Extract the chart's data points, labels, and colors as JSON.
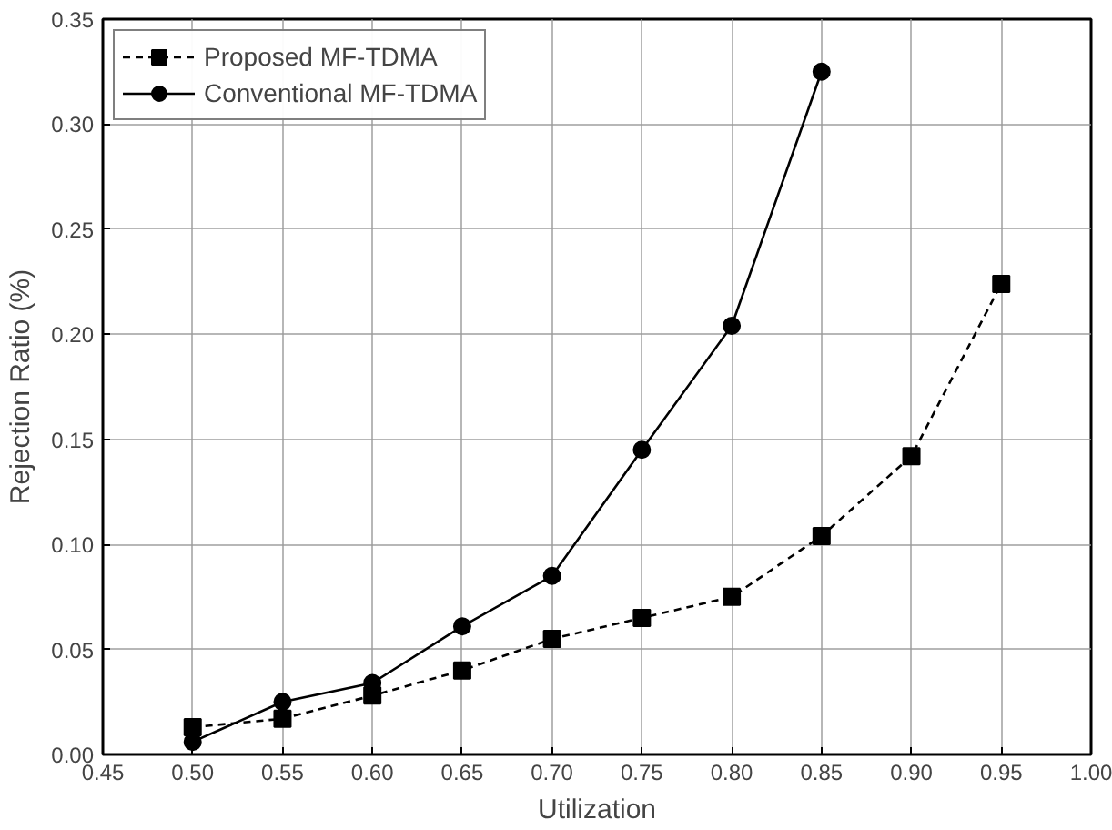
{
  "chart_data": {
    "type": "line",
    "xlabel": "Utilization",
    "ylabel": "Rejection Ratio (%)",
    "xlim": [
      0.45,
      1.0
    ],
    "ylim": [
      0,
      0.35
    ],
    "xticks": [
      {
        "value": 0.45,
        "label": "0.45"
      },
      {
        "value": 0.5,
        "label": "0.50"
      },
      {
        "value": 0.55,
        "label": "0.55"
      },
      {
        "value": 0.6,
        "label": "0.60"
      },
      {
        "value": 0.65,
        "label": "0.65"
      },
      {
        "value": 0.7,
        "label": "0.70"
      },
      {
        "value": 0.75,
        "label": "0.75"
      },
      {
        "value": 0.8,
        "label": "0.80"
      },
      {
        "value": 0.85,
        "label": "0.85"
      },
      {
        "value": 0.9,
        "label": "0.90"
      },
      {
        "value": 0.95,
        "label": "0.95"
      },
      {
        "value": 1.0,
        "label": "1.00"
      }
    ],
    "yticks": [
      {
        "value": 0,
        "label": "0.00"
      },
      {
        "value": 0.05,
        "label": "0.05"
      },
      {
        "value": 0.1,
        "label": "0.10"
      },
      {
        "value": 0.15,
        "label": "0.15"
      },
      {
        "value": 0.2,
        "label": "0.20"
      },
      {
        "value": 0.25,
        "label": "0.25"
      },
      {
        "value": 0.3,
        "label": "0.30"
      },
      {
        "value": 0.35,
        "label": "0.35"
      }
    ],
    "grid": true,
    "legend": "top left",
    "series": [
      {
        "name": "Proposed MF-TDMA",
        "color": "#000000",
        "marker": "square",
        "line_style": "dashed",
        "x": [
          0.5,
          0.55,
          0.6,
          0.65,
          0.7,
          0.75,
          0.8,
          0.85,
          0.9,
          0.95
        ],
        "values": [
          0.013,
          0.017,
          0.028,
          0.04,
          0.055,
          0.065,
          0.075,
          0.104,
          0.142,
          0.224
        ]
      },
      {
        "name": "Conventional MF-TDMA",
        "color": "#000000",
        "marker": "circle",
        "line_style": "solid",
        "x": [
          0.5,
          0.55,
          0.6,
          0.65,
          0.7,
          0.75,
          0.8,
          0.85
        ],
        "values": [
          0.006,
          0.025,
          0.034,
          0.061,
          0.085,
          0.145,
          0.204,
          0.325
        ]
      }
    ]
  }
}
